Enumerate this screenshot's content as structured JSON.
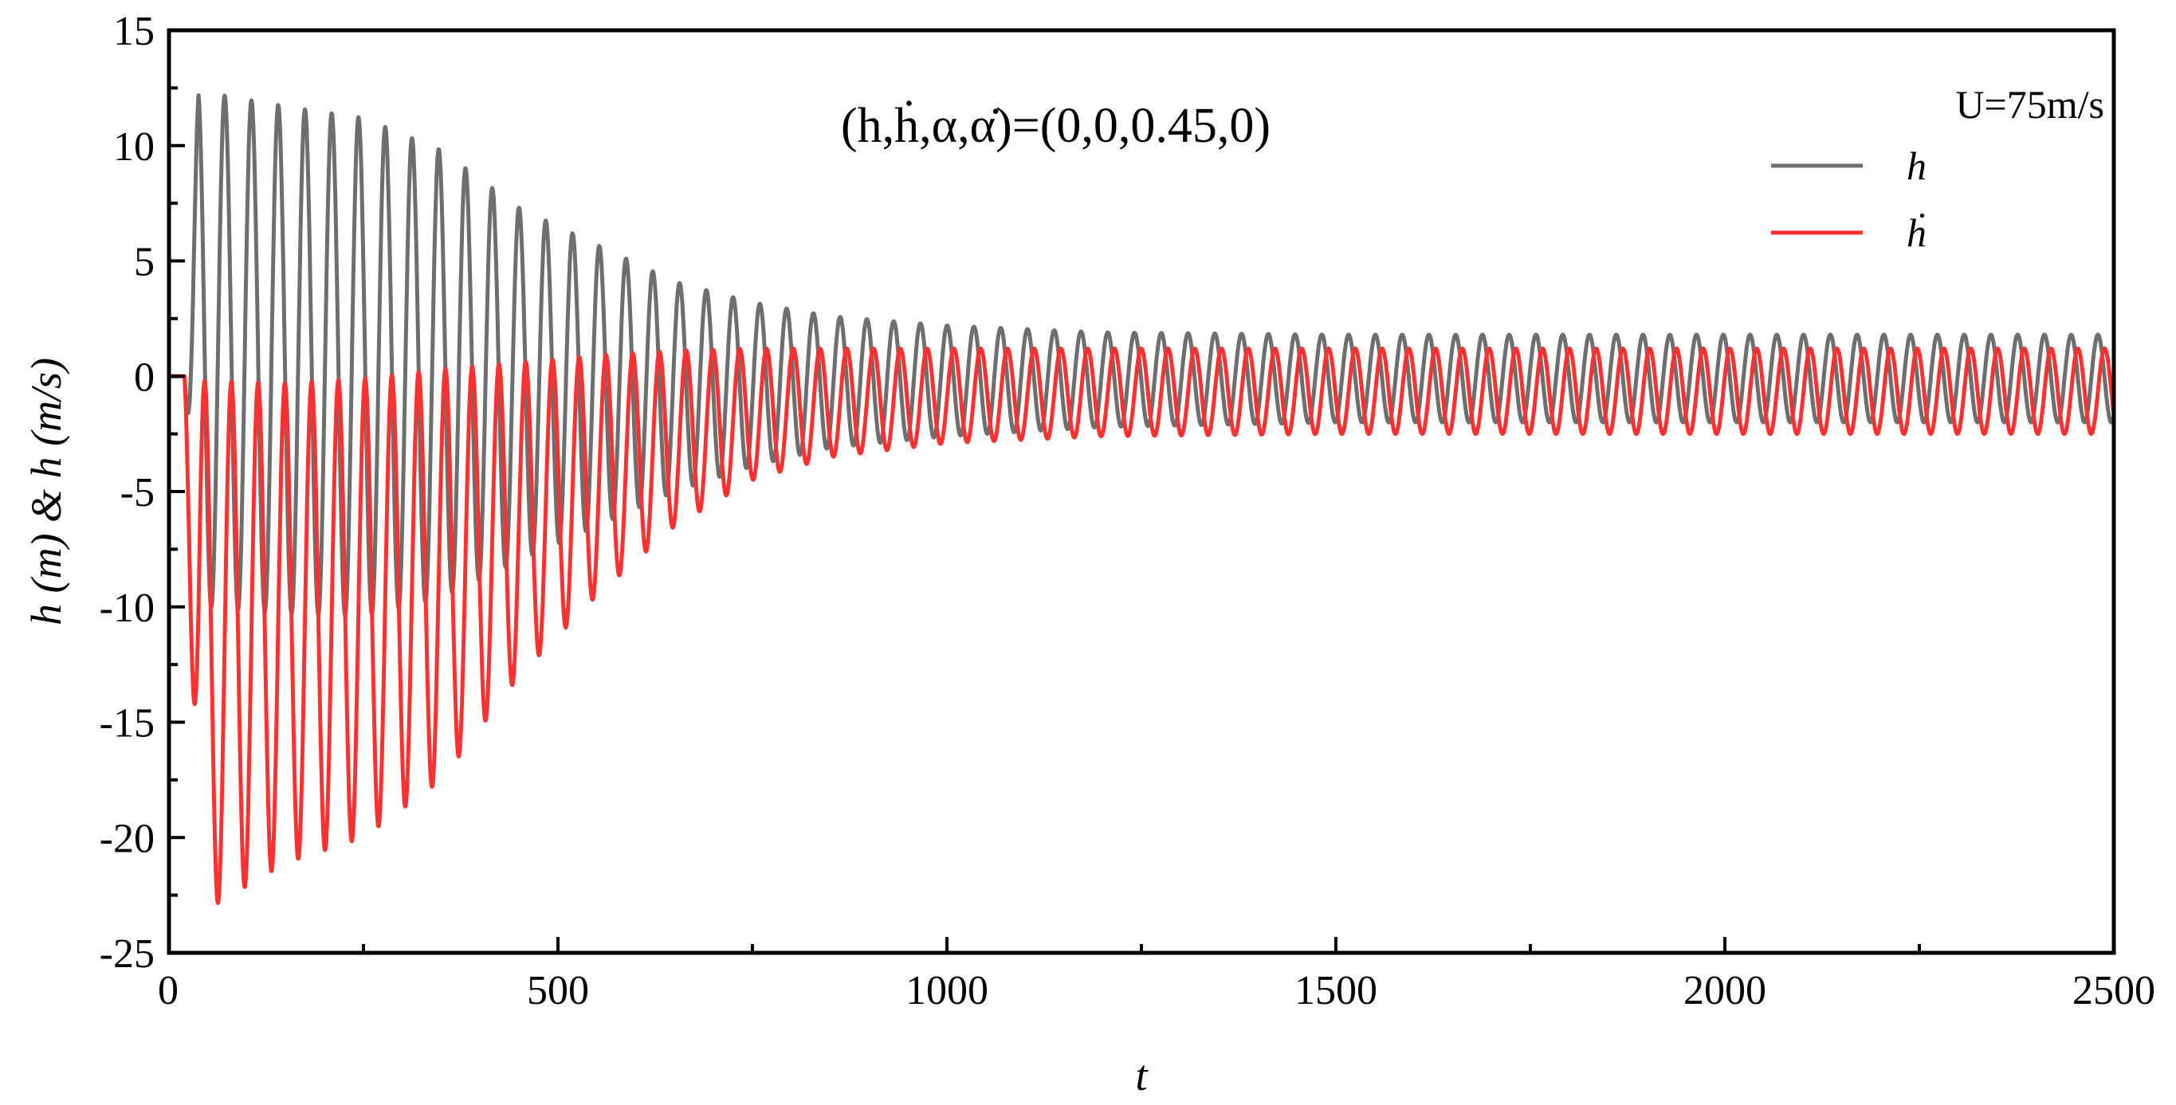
{
  "chart_data": {
    "type": "line",
    "xlabel": "t",
    "ylabel": "h (m) & h (m/s)",
    "xlim": [
      0,
      2500
    ],
    "ylim": [
      -25,
      15
    ],
    "x_ticks": [
      0,
      500,
      1000,
      1500,
      2000,
      2500
    ],
    "y_ticks": [
      15,
      10,
      5,
      0,
      -5,
      -10,
      -15,
      -20,
      -25
    ],
    "annotation": "(h,ḣ,α,α̇)=(0,0,0.45,0)",
    "legend": {
      "title": "U=75m/s",
      "placement": "top-right"
    },
    "series": [
      {
        "name": "h",
        "color": "#6e6e6e",
        "period": 34.4,
        "start_t": 20,
        "samples": [
          {
            "t": 50,
            "max": 12.3,
            "min": -10.0
          },
          {
            "t": 150,
            "max": 11.7,
            "min": -10.3
          },
          {
            "t": 250,
            "max": 11.2,
            "min": -10.4
          },
          {
            "t": 350,
            "max": 9.8,
            "min": -9.6
          },
          {
            "t": 450,
            "max": 7.3,
            "min": -8.0
          },
          {
            "t": 550,
            "max": 5.7,
            "min": -6.5
          },
          {
            "t": 650,
            "max": 4.1,
            "min": -5.0
          },
          {
            "t": 750,
            "max": 3.2,
            "min": -3.9
          },
          {
            "t": 850,
            "max": 2.6,
            "min": -3.1
          },
          {
            "t": 1000,
            "max": 2.2,
            "min": -2.6
          },
          {
            "t": 1200,
            "max": 1.9,
            "min": -2.2
          },
          {
            "t": 1500,
            "max": 1.8,
            "min": -2.0
          },
          {
            "t": 2500,
            "max": 1.8,
            "min": -2.0
          }
        ]
      },
      {
        "name": "ḣ",
        "color": "#ff3030",
        "period": 34.4,
        "start_t": 20,
        "samples": [
          {
            "t": 45,
            "max": -0.2,
            "min": -23.2
          },
          {
            "t": 150,
            "max": -0.3,
            "min": -21.1
          },
          {
            "t": 250,
            "max": -0.1,
            "min": -20.0
          },
          {
            "t": 350,
            "max": 0.3,
            "min": -17.5
          },
          {
            "t": 450,
            "max": 0.6,
            "min": -13.0
          },
          {
            "t": 550,
            "max": 0.9,
            "min": -9.5
          },
          {
            "t": 650,
            "max": 1.1,
            "min": -6.5
          },
          {
            "t": 750,
            "max": 1.2,
            "min": -4.5
          },
          {
            "t": 850,
            "max": 1.2,
            "min": -3.5
          },
          {
            "t": 1000,
            "max": 1.2,
            "min": -2.9
          },
          {
            "t": 1200,
            "max": 1.2,
            "min": -2.6
          },
          {
            "t": 1500,
            "max": 1.2,
            "min": -2.5
          },
          {
            "t": 2500,
            "max": 1.2,
            "min": -2.5
          }
        ]
      }
    ]
  }
}
